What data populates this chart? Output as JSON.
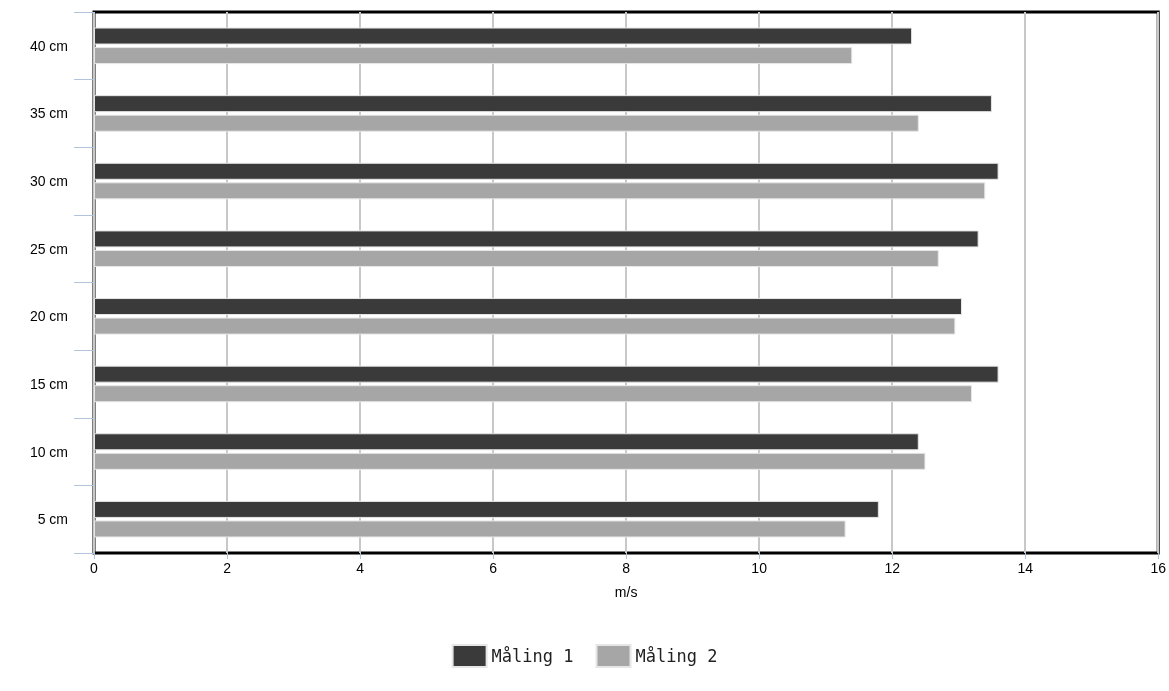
{
  "chart_data": {
    "type": "bar",
    "orientation": "horizontal",
    "xlabel": "m/s",
    "categories": [
      "40 cm",
      "35 cm",
      "30 cm",
      "25 cm",
      "20 cm",
      "15 cm",
      "10 cm",
      "5 cm"
    ],
    "series": [
      {
        "name": "Måling 1",
        "color": "#3a3a3a",
        "values": [
          12.3,
          13.5,
          13.6,
          13.3,
          13.05,
          13.6,
          12.4,
          11.8
        ]
      },
      {
        "name": "Måling 2",
        "color": "#a6a6a6",
        "values": [
          11.4,
          12.4,
          13.4,
          12.7,
          12.95,
          13.2,
          12.5,
          11.3
        ]
      }
    ],
    "xlim": [
      0,
      16
    ],
    "xticks": [
      0,
      2,
      4,
      6,
      8,
      10,
      12,
      14,
      16
    ],
    "grid": "x",
    "legend": "bottom"
  }
}
